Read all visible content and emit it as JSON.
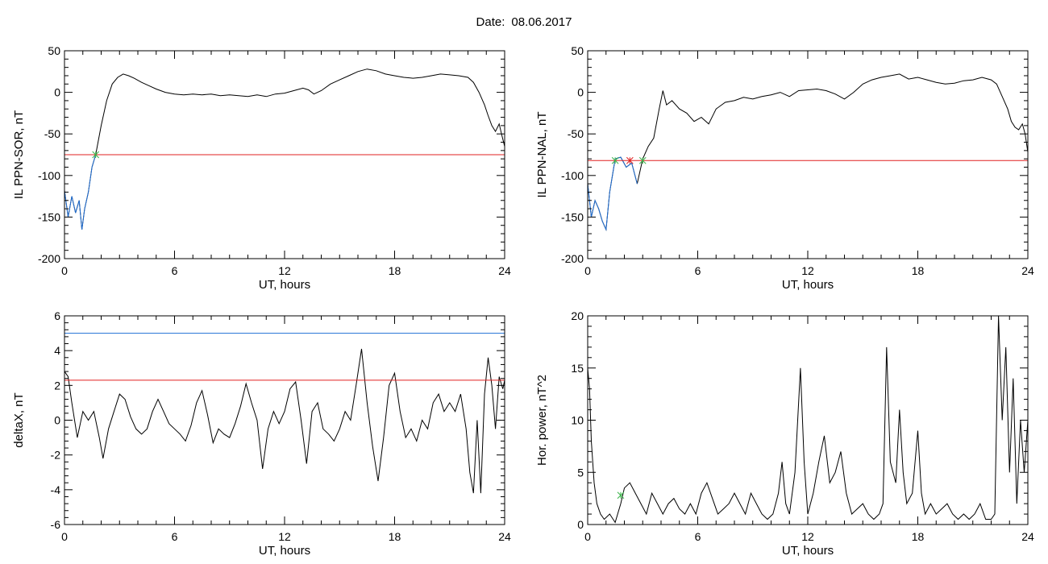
{
  "page": {
    "date_label": "Date:",
    "date_value": "08.06.2017"
  },
  "chart_data": [
    {
      "id": "p1",
      "type": "line",
      "xlabel": "UT, hours",
      "ylabel": "IL PPN-SOR, nT",
      "xlim": [
        0,
        24
      ],
      "ylim": [
        -200,
        50
      ],
      "xticks": [
        0,
        6,
        12,
        18,
        24
      ],
      "yticks": [
        -200,
        -150,
        -100,
        -50,
        0,
        50
      ],
      "series": [
        {
          "color": "#000000",
          "x": [
            0,
            0.2,
            0.4,
            0.6,
            0.8,
            0.95,
            1.1,
            1.3,
            1.5,
            1.7,
            2.0,
            2.3,
            2.6,
            2.9,
            3.2,
            3.5,
            3.8,
            4.2,
            4.6,
            5.0,
            5.5,
            6.0,
            6.5,
            7.0,
            7.5,
            8.0,
            8.5,
            9.0,
            9.5,
            10.0,
            10.5,
            11.0,
            11.5,
            12.0,
            12.5,
            13.0,
            13.3,
            13.6,
            14.0,
            14.5,
            15.0,
            15.5,
            16.0,
            16.5,
            17.0,
            17.5,
            18.0,
            18.5,
            19.0,
            19.5,
            20.0,
            20.5,
            21.0,
            21.5,
            22.0,
            22.3,
            22.6,
            22.9,
            23.1,
            23.3,
            23.5,
            23.7,
            23.85,
            24.0
          ],
          "y": [
            -118,
            -150,
            -125,
            -145,
            -130,
            -165,
            -140,
            -120,
            -90,
            -75,
            -40,
            -10,
            10,
            18,
            22,
            20,
            17,
            12,
            8,
            4,
            0,
            -2,
            -3,
            -2,
            -3,
            -2,
            -4,
            -3,
            -4,
            -5,
            -3,
            -5,
            -2,
            -1,
            2,
            5,
            3,
            -2,
            2,
            10,
            15,
            20,
            25,
            28,
            26,
            22,
            20,
            18,
            17,
            18,
            20,
            22,
            21,
            20,
            18,
            12,
            0,
            -15,
            -28,
            -40,
            -47,
            -38,
            -52,
            -65
          ]
        },
        {
          "color": "#1f6fd6",
          "x": [
            0,
            0.2,
            0.4,
            0.6,
            0.8,
            0.95,
            1.1,
            1.3,
            1.5,
            1.7
          ],
          "y": [
            -118,
            -150,
            -125,
            -145,
            -130,
            -165,
            -140,
            -120,
            -90,
            -75
          ]
        },
        {
          "color": "#e02020",
          "x": [
            0,
            24
          ],
          "y": [
            -75,
            -75
          ]
        }
      ],
      "markers": [
        {
          "x": 1.7,
          "y": -75,
          "color": "#3cb44b"
        }
      ]
    },
    {
      "id": "p2",
      "type": "line",
      "xlabel": "UT, hours",
      "ylabel": "IL PPN-NAL, nT",
      "xlim": [
        0,
        24
      ],
      "ylim": [
        -200,
        50
      ],
      "xticks": [
        0,
        6,
        12,
        18,
        24
      ],
      "yticks": [
        -200,
        -150,
        -100,
        -50,
        0,
        50
      ],
      "series": [
        {
          "color": "#000000",
          "x": [
            0,
            0.2,
            0.4,
            0.6,
            0.8,
            1.0,
            1.2,
            1.5,
            1.8,
            2.1,
            2.4,
            2.7,
            3.0,
            3.3,
            3.6,
            3.9,
            4.1,
            4.3,
            4.6,
            5.0,
            5.4,
            5.8,
            6.2,
            6.6,
            7.0,
            7.5,
            8.0,
            8.5,
            9.0,
            9.5,
            10.0,
            10.5,
            11.0,
            11.5,
            12.0,
            12.5,
            13.0,
            13.5,
            14.0,
            14.5,
            15.0,
            15.5,
            16.0,
            16.5,
            17.0,
            17.5,
            18.0,
            18.5,
            19.0,
            19.5,
            20.0,
            20.5,
            21.0,
            21.5,
            22.0,
            22.3,
            22.6,
            22.9,
            23.1,
            23.3,
            23.5,
            23.7,
            23.85,
            24.0
          ],
          "y": [
            -110,
            -150,
            -130,
            -140,
            -155,
            -165,
            -120,
            -80,
            -78,
            -90,
            -85,
            -110,
            -80,
            -65,
            -55,
            -20,
            2,
            -15,
            -10,
            -20,
            -25,
            -35,
            -30,
            -38,
            -20,
            -12,
            -10,
            -6,
            -8,
            -5,
            -3,
            0,
            -5,
            2,
            3,
            4,
            2,
            -2,
            -8,
            0,
            10,
            15,
            18,
            20,
            22,
            16,
            18,
            15,
            12,
            10,
            11,
            14,
            15,
            18,
            15,
            10,
            -5,
            -20,
            -35,
            -42,
            -45,
            -38,
            -50,
            -72
          ]
        },
        {
          "color": "#1f6fd6",
          "x": [
            0,
            0.2,
            0.4,
            0.6,
            0.8,
            1.0,
            1.2,
            1.5,
            1.8,
            2.1,
            2.4,
            2.7
          ],
          "y": [
            -110,
            -150,
            -130,
            -140,
            -155,
            -165,
            -120,
            -80,
            -78,
            -90,
            -85,
            -110
          ]
        },
        {
          "color": "#e02020",
          "x": [
            0,
            24
          ],
          "y": [
            -82,
            -82
          ]
        }
      ],
      "markers": [
        {
          "x": 1.5,
          "y": -82,
          "color": "#3cb44b"
        },
        {
          "x": 2.3,
          "y": -82,
          "color": "#e02020"
        },
        {
          "x": 3.0,
          "y": -82,
          "color": "#3cb44b"
        }
      ]
    },
    {
      "id": "p3",
      "type": "line",
      "xlabel": "UT, hours",
      "ylabel": "deltaX, nT",
      "xlim": [
        0,
        24
      ],
      "ylim": [
        -6,
        6
      ],
      "xticks": [
        0,
        6,
        12,
        18,
        24
      ],
      "yticks": [
        -6,
        -4,
        -2,
        0,
        2,
        4,
        6
      ],
      "series": [
        {
          "color": "#000000",
          "x": [
            0,
            0.2,
            0.4,
            0.7,
            1.0,
            1.3,
            1.6,
            1.9,
            2.1,
            2.4,
            2.7,
            3.0,
            3.3,
            3.6,
            3.9,
            4.2,
            4.5,
            4.8,
            5.1,
            5.4,
            5.7,
            6.0,
            6.3,
            6.6,
            6.9,
            7.2,
            7.5,
            7.8,
            8.1,
            8.4,
            8.7,
            9.0,
            9.3,
            9.6,
            9.9,
            10.2,
            10.5,
            10.8,
            11.1,
            11.4,
            11.7,
            12.0,
            12.3,
            12.6,
            12.9,
            13.2,
            13.5,
            13.8,
            14.1,
            14.4,
            14.7,
            15.0,
            15.3,
            15.6,
            15.9,
            16.2,
            16.5,
            16.8,
            17.1,
            17.4,
            17.7,
            18.0,
            18.3,
            18.6,
            18.9,
            19.2,
            19.5,
            19.8,
            20.1,
            20.4,
            20.7,
            21.0,
            21.3,
            21.6,
            21.9,
            22.1,
            22.3,
            22.5,
            22.7,
            22.9,
            23.1,
            23.3,
            23.5,
            23.7,
            23.9,
            24.0
          ],
          "y": [
            2.8,
            2.5,
            1.0,
            -1.0,
            0.5,
            0.0,
            0.5,
            -1.0,
            -2.2,
            -0.5,
            0.5,
            1.5,
            1.2,
            0.2,
            -0.5,
            -0.8,
            -0.5,
            0.5,
            1.2,
            0.5,
            -0.2,
            -0.5,
            -0.8,
            -1.2,
            -0.3,
            1.0,
            1.7,
            0.3,
            -1.3,
            -0.5,
            -0.8,
            -1.0,
            -0.2,
            0.8,
            2.1,
            1.0,
            0.0,
            -2.8,
            -0.5,
            0.5,
            -0.2,
            0.5,
            1.8,
            2.2,
            0.0,
            -2.5,
            0.5,
            1.0,
            -0.5,
            -0.8,
            -1.2,
            -0.5,
            0.5,
            0.0,
            2.0,
            4.1,
            1.0,
            -1.5,
            -3.5,
            -1.0,
            2.0,
            2.7,
            0.5,
            -1.0,
            -0.5,
            -1.2,
            0.0,
            -0.5,
            1.0,
            1.5,
            0.5,
            1.0,
            0.5,
            1.5,
            -0.5,
            -3.0,
            -4.2,
            0.0,
            -4.2,
            1.5,
            3.6,
            2.0,
            -0.5,
            2.5,
            1.8,
            2.3
          ]
        },
        {
          "color": "#1f6fd6",
          "x": [
            0,
            24
          ],
          "y": [
            5,
            5
          ]
        },
        {
          "color": "#e02020",
          "x": [
            0,
            24
          ],
          "y": [
            2.3,
            2.3
          ]
        }
      ],
      "markers": []
    },
    {
      "id": "p4",
      "type": "line",
      "xlabel": "UT, hours",
      "ylabel": "Hor. power, nT^2",
      "xlim": [
        0,
        24
      ],
      "ylim": [
        0,
        20
      ],
      "xticks": [
        0,
        6,
        12,
        18,
        24
      ],
      "yticks": [
        0,
        5,
        10,
        15,
        20
      ],
      "series": [
        {
          "color": "#000000",
          "x": [
            0,
            0.1,
            0.2,
            0.35,
            0.5,
            0.7,
            0.9,
            1.2,
            1.5,
            1.8,
            2.0,
            2.3,
            2.6,
            2.9,
            3.2,
            3.5,
            3.8,
            4.1,
            4.4,
            4.7,
            5.0,
            5.3,
            5.6,
            5.9,
            6.2,
            6.5,
            6.8,
            7.1,
            7.4,
            7.7,
            8.0,
            8.3,
            8.6,
            8.9,
            9.2,
            9.5,
            9.8,
            10.1,
            10.4,
            10.6,
            10.8,
            11.0,
            11.3,
            11.6,
            11.8,
            12.0,
            12.3,
            12.6,
            12.9,
            13.2,
            13.5,
            13.8,
            14.1,
            14.4,
            14.7,
            15.0,
            15.3,
            15.6,
            15.9,
            16.1,
            16.3,
            16.5,
            16.8,
            17.0,
            17.2,
            17.4,
            17.7,
            18.0,
            18.2,
            18.4,
            18.7,
            19.0,
            19.3,
            19.6,
            19.9,
            20.2,
            20.5,
            20.8,
            21.1,
            21.4,
            21.7,
            22.0,
            22.2,
            22.4,
            22.6,
            22.8,
            23.0,
            23.2,
            23.4,
            23.6,
            23.8,
            24.0
          ],
          "y": [
            15,
            13,
            8,
            4,
            2,
            1,
            0.5,
            1,
            0.2,
            2,
            3.5,
            4,
            3,
            2,
            1,
            3,
            2,
            1,
            2,
            2.5,
            1.5,
            1,
            2,
            1,
            3,
            4,
            2.5,
            1,
            1.5,
            2,
            3,
            2,
            1,
            3,
            2,
            1,
            0.5,
            1,
            3,
            6,
            2,
            1,
            5,
            15,
            6,
            1,
            3,
            6,
            8.5,
            4,
            5,
            7,
            3,
            1,
            1.5,
            2,
            1,
            0.5,
            1,
            2,
            17,
            6,
            4,
            11,
            5,
            2,
            3,
            9,
            3,
            1,
            2,
            1,
            1.5,
            2,
            1,
            0.5,
            1,
            0.5,
            1,
            2,
            0.5,
            0.5,
            1,
            20,
            10,
            17,
            5,
            14,
            2,
            10,
            5,
            10
          ]
        }
      ],
      "markers": [
        {
          "x": 1.8,
          "y": 2.8,
          "color": "#3cb44b"
        }
      ]
    }
  ]
}
